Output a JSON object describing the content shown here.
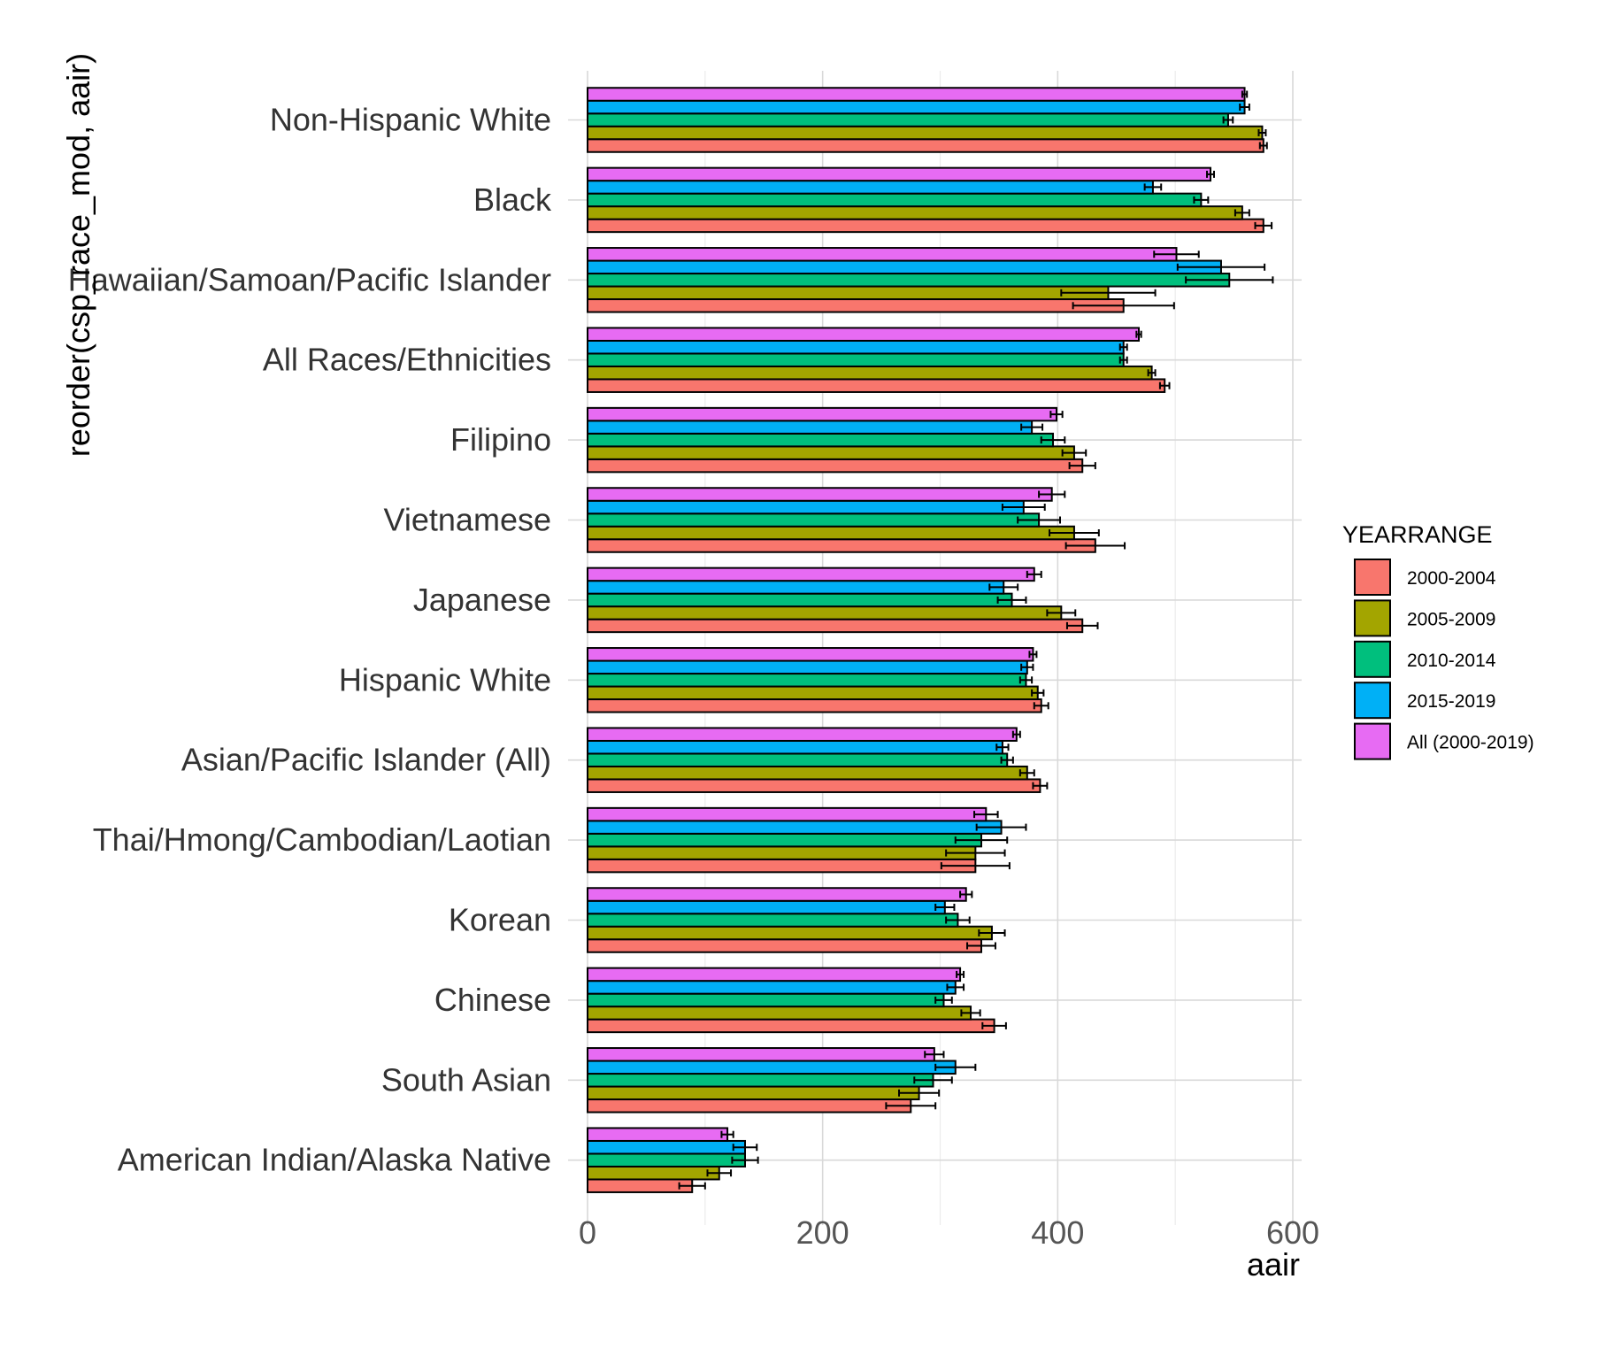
{
  "chart_data": {
    "type": "bar",
    "orientation": "horizontal",
    "xlabel": "aair",
    "ylabel": "reorder(csp_race_mod, aair)",
    "xlim": [
      0,
      610
    ],
    "xticks": [
      0,
      200,
      400,
      600
    ],
    "grid": true,
    "legend": {
      "title": "YEARRANGE",
      "placement": "right"
    },
    "categories": [
      "Non-Hispanic White",
      "Black",
      "Hawaiian/Samoan/Pacific Islander",
      "All Races/Ethnicities",
      "Filipino",
      "Vietnamese",
      "Japanese",
      "Hispanic White",
      "Asian/Pacific Islander (All)",
      "Thai/Hmong/Cambodian/Laotian",
      "Korean",
      "Chinese",
      "South Asian",
      "American Indian/Alaska Native"
    ],
    "series": [
      {
        "name": "2000-2004",
        "color": "#F8766D",
        "values": [
          575,
          575,
          456,
          491,
          421,
          432,
          421,
          386,
          385,
          330,
          335,
          346,
          275,
          89
        ],
        "err": [
          [
            572,
            578
          ],
          [
            568,
            582
          ],
          [
            413,
            499
          ],
          [
            487,
            495
          ],
          [
            410,
            432
          ],
          [
            407,
            457
          ],
          [
            408,
            434
          ],
          [
            380,
            392
          ],
          [
            379,
            391
          ],
          [
            301,
            359
          ],
          [
            323,
            347
          ],
          [
            336,
            356
          ],
          [
            254,
            296
          ],
          [
            78,
            100
          ]
        ]
      },
      {
        "name": "2005-2009",
        "color": "#A3A500",
        "values": [
          574,
          557,
          443,
          480,
          414,
          414,
          403,
          383,
          374,
          330,
          344,
          326,
          282,
          112
        ],
        "err": [
          [
            571,
            577
          ],
          [
            551,
            563
          ],
          [
            403,
            483
          ],
          [
            477,
            483
          ],
          [
            404,
            424
          ],
          [
            393,
            435
          ],
          [
            391,
            415
          ],
          [
            378,
            388
          ],
          [
            368,
            380
          ],
          [
            305,
            355
          ],
          [
            333,
            355
          ],
          [
            318,
            334
          ],
          [
            265,
            299
          ],
          [
            102,
            122
          ]
        ]
      },
      {
        "name": "2010-2014",
        "color": "#00BF7D",
        "values": [
          545,
          522,
          546,
          456,
          396,
          384,
          361,
          373,
          357,
          335,
          315,
          303,
          294,
          134
        ],
        "err": [
          [
            541,
            549
          ],
          [
            516,
            528
          ],
          [
            509,
            583
          ],
          [
            453,
            459
          ],
          [
            386,
            406
          ],
          [
            366,
            402
          ],
          [
            349,
            373
          ],
          [
            368,
            378
          ],
          [
            352,
            362
          ],
          [
            313,
            357
          ],
          [
            305,
            325
          ],
          [
            296,
            310
          ],
          [
            278,
            310
          ],
          [
            123,
            145
          ]
        ]
      },
      {
        "name": "2015-2019",
        "color": "#00B0F6",
        "values": [
          559,
          481,
          539,
          456,
          378,
          371,
          354,
          374,
          353,
          352,
          304,
          313,
          313,
          134
        ],
        "err": [
          [
            555,
            563
          ],
          [
            474,
            488
          ],
          [
            502,
            576
          ],
          [
            453,
            459
          ],
          [
            369,
            387
          ],
          [
            353,
            389
          ],
          [
            342,
            366
          ],
          [
            369,
            379
          ],
          [
            348,
            358
          ],
          [
            331,
            373
          ],
          [
            296,
            312
          ],
          [
            306,
            320
          ],
          [
            296,
            330
          ],
          [
            124,
            144
          ]
        ]
      },
      {
        "name": "All (2000-2019)",
        "color": "#E76BF3",
        "values": [
          559,
          530,
          501,
          469,
          399,
          395,
          380,
          379,
          365,
          339,
          322,
          317,
          295,
          119
        ],
        "err": [
          [
            557,
            561
          ],
          [
            527,
            533
          ],
          [
            482,
            520
          ],
          [
            467,
            471
          ],
          [
            394,
            404
          ],
          [
            384,
            406
          ],
          [
            374,
            386
          ],
          [
            376,
            382
          ],
          [
            362,
            368
          ],
          [
            329,
            349
          ],
          [
            317,
            327
          ],
          [
            314,
            320
          ],
          [
            287,
            303
          ],
          [
            114,
            124
          ]
        ]
      }
    ]
  }
}
